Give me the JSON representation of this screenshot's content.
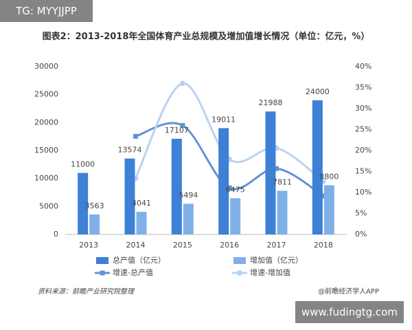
{
  "watermark_top": "TG: MYYJJPP",
  "chart_data": {
    "type": "combo",
    "title": "图表2：2013-2018年全国体育产业总规模及增加值增长情况（单位：亿元，%）",
    "categories": [
      "2013",
      "2014",
      "2015",
      "2016",
      "2017",
      "2018"
    ],
    "series": [
      {
        "name": "总产值（亿元）",
        "type": "bar",
        "color": "#3d80d6",
        "values": [
          11000,
          13574,
          17107,
          19011,
          21988,
          24000
        ]
      },
      {
        "name": "增加值（亿元）",
        "type": "bar",
        "color": "#7fb1e8",
        "values": [
          3563,
          4041,
          5494,
          6475,
          7811,
          8800
        ]
      },
      {
        "name": "增速-总产值",
        "type": "line",
        "axis": "y2",
        "marker": "square",
        "color": "#5f93d3",
        "values": [
          null,
          23.4,
          26.0,
          11.1,
          15.7,
          9.2
        ]
      },
      {
        "name": "增速-增加值",
        "type": "line",
        "axis": "y2",
        "marker": "circle",
        "color": "#b8d3f0",
        "values": [
          null,
          13.4,
          36.0,
          17.9,
          20.6,
          12.7
        ]
      }
    ],
    "ylim": [
      0,
      30000
    ],
    "yticks": [
      0,
      5000,
      10000,
      15000,
      20000,
      25000,
      30000
    ],
    "y2lim": [
      0,
      40
    ],
    "y2ticks": [
      {
        "value": 0,
        "label": "0%"
      },
      {
        "value": 5,
        "label": "5%"
      },
      {
        "value": 10,
        "label": "10%"
      },
      {
        "value": 15,
        "label": "15%"
      },
      {
        "value": 20,
        "label": "20%"
      },
      {
        "value": 25,
        "label": "25%"
      },
      {
        "value": 30,
        "label": "30%"
      },
      {
        "value": 35,
        "label": "35%"
      },
      {
        "value": 40,
        "label": "40%"
      }
    ],
    "source": "资料来源：前瞻产业研究院整理",
    "credit": "@前瞻经济学人APP"
  },
  "watermark_bottom": "www.fudingtg.com"
}
